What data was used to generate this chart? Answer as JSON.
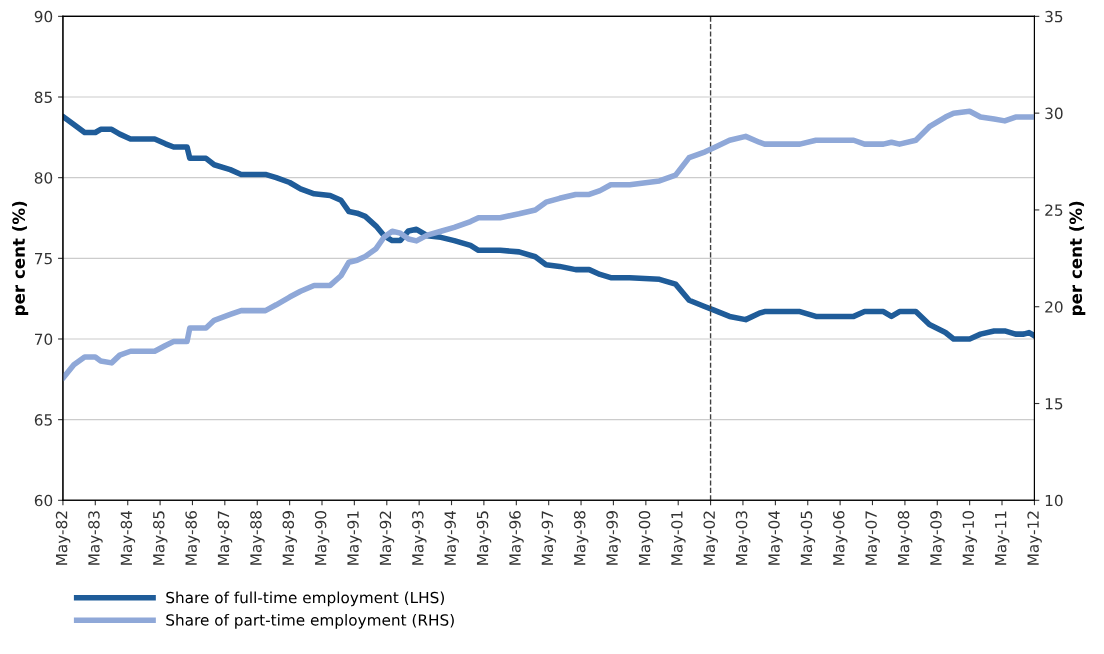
{
  "chart_data": {
    "type": "line",
    "x": [
      "1982-05",
      "1982-09",
      "1983-01",
      "1983-05",
      "1983-07",
      "1983-11",
      "1984-02",
      "1984-06",
      "1985-03",
      "1985-07",
      "1985-10",
      "1986-03",
      "1986-04",
      "1986-10",
      "1987-01",
      "1987-07",
      "1987-11",
      "1988-08",
      "1988-12",
      "1989-05",
      "1989-09",
      "1990-02",
      "1990-08",
      "1990-12",
      "1991-03",
      "1991-06",
      "1991-09",
      "1992-01",
      "1992-04",
      "1992-07",
      "1992-10",
      "1993-01",
      "1993-04",
      "1993-08",
      "1994-01",
      "1994-06",
      "1994-12",
      "1995-03",
      "1995-11",
      "1996-06",
      "1996-12",
      "1997-04",
      "1997-09",
      "1998-03",
      "1998-08",
      "1998-12",
      "1999-04",
      "1999-11",
      "2000-10",
      "2001-04",
      "2001-09",
      "2002-03",
      "2002-06",
      "2002-12",
      "2003-06",
      "2003-11",
      "2004-01",
      "2005-02",
      "2005-08",
      "2006-10",
      "2007-02",
      "2007-09",
      "2007-12",
      "2008-03",
      "2008-09",
      "2009-02",
      "2009-08",
      "2009-11",
      "2010-05",
      "2010-09",
      "2011-02",
      "2011-06",
      "2011-10",
      "2012-01",
      "2012-03",
      "2012-05"
    ],
    "series": [
      {
        "name": "Share of full-time employment (LHS)",
        "color": "#1f5c99",
        "values": [
          83.8,
          83.3,
          82.8,
          82.8,
          83.0,
          83.0,
          82.7,
          82.4,
          82.4,
          82.1,
          81.9,
          81.9,
          81.2,
          81.2,
          80.8,
          80.5,
          80.2,
          80.2,
          80.0,
          79.7,
          79.3,
          79.0,
          78.9,
          78.6,
          77.9,
          77.8,
          77.6,
          77.0,
          76.4,
          76.1,
          76.1,
          76.7,
          76.8,
          76.4,
          76.3,
          76.1,
          75.8,
          75.5,
          75.5,
          75.4,
          75.1,
          74.6,
          74.5,
          74.3,
          74.3,
          74.0,
          73.8,
          73.8,
          73.7,
          73.4,
          72.4,
          72.0,
          71.8,
          71.4,
          71.2,
          71.6,
          71.7,
          71.7,
          71.4,
          71.4,
          71.7,
          71.7,
          71.4,
          71.7,
          71.7,
          70.9,
          70.4,
          70.0,
          70.0,
          70.3,
          70.5,
          70.5,
          70.3,
          70.3,
          70.4,
          70.2
        ]
      },
      {
        "name": "Share of part-time employment (RHS)",
        "color": "#8fa8d8",
        "axis": "y2",
        "values": [
          16.3,
          17.0,
          17.4,
          17.4,
          17.2,
          17.1,
          17.5,
          17.7,
          17.7,
          18.0,
          18.2,
          18.2,
          18.9,
          18.9,
          19.3,
          19.6,
          19.8,
          19.8,
          20.1,
          20.5,
          20.8,
          21.1,
          21.1,
          21.6,
          22.3,
          22.4,
          22.6,
          23.0,
          23.6,
          23.9,
          23.8,
          23.5,
          23.4,
          23.7,
          23.9,
          24.1,
          24.4,
          24.6,
          24.6,
          24.8,
          25.0,
          25.4,
          25.6,
          25.8,
          25.8,
          26.0,
          26.3,
          26.3,
          26.5,
          26.8,
          27.7,
          28.0,
          28.2,
          28.6,
          28.8,
          28.5,
          28.4,
          28.4,
          28.6,
          28.6,
          28.4,
          28.4,
          28.5,
          28.4,
          28.6,
          29.3,
          29.8,
          30.0,
          30.1,
          29.8,
          29.7,
          29.6,
          29.8,
          29.8,
          29.8,
          29.8
        ]
      }
    ],
    "xlim": [
      "1982-05",
      "2012-05"
    ],
    "xticks": [
      {
        "value": "1982-05",
        "label": "May-82"
      },
      {
        "value": "1983-05",
        "label": "May-83"
      },
      {
        "value": "1984-05",
        "label": "May-84"
      },
      {
        "value": "1985-05",
        "label": "May-85"
      },
      {
        "value": "1986-05",
        "label": "May-86"
      },
      {
        "value": "1987-05",
        "label": "May-87"
      },
      {
        "value": "1988-05",
        "label": "May-88"
      },
      {
        "value": "1989-05",
        "label": "May-89"
      },
      {
        "value": "1990-05",
        "label": "May-90"
      },
      {
        "value": "1991-05",
        "label": "May-91"
      },
      {
        "value": "1992-05",
        "label": "May-92"
      },
      {
        "value": "1993-05",
        "label": "May-93"
      },
      {
        "value": "1994-05",
        "label": "May-94"
      },
      {
        "value": "1995-05",
        "label": "May-95"
      },
      {
        "value": "1996-05",
        "label": "May-96"
      },
      {
        "value": "1997-05",
        "label": "May-97"
      },
      {
        "value": "1998-05",
        "label": "May-98"
      },
      {
        "value": "1999-05",
        "label": "May-99"
      },
      {
        "value": "2000-05",
        "label": "May-00"
      },
      {
        "value": "2001-05",
        "label": "May-01"
      },
      {
        "value": "2002-05",
        "label": "May-02"
      },
      {
        "value": "2003-05",
        "label": "May-03"
      },
      {
        "value": "2004-05",
        "label": "May-04"
      },
      {
        "value": "2005-05",
        "label": "May-05"
      },
      {
        "value": "2006-05",
        "label": "May-06"
      },
      {
        "value": "2007-05",
        "label": "May-07"
      },
      {
        "value": "2008-05",
        "label": "May-08"
      },
      {
        "value": "2009-05",
        "label": "May-09"
      },
      {
        "value": "2010-05",
        "label": "May-10"
      },
      {
        "value": "2011-05",
        "label": "May-11"
      },
      {
        "value": "2012-05",
        "label": "May-12"
      }
    ],
    "ylim": [
      60,
      90
    ],
    "yticks": [
      60,
      65,
      70,
      75,
      80,
      85,
      90
    ],
    "y2lim": [
      10,
      35
    ],
    "y2ticks": [
      10,
      15,
      20,
      25,
      30,
      35
    ],
    "ylabel": "per cent (%)",
    "y2label": "per cent (%)",
    "ref_lines": [
      {
        "axis": "x",
        "value": "2002-05",
        "color": "#404040",
        "line_style": "dashed"
      }
    ],
    "grid": "y",
    "legend": "bottom",
    "line_style": "solid",
    "marker": "none"
  }
}
